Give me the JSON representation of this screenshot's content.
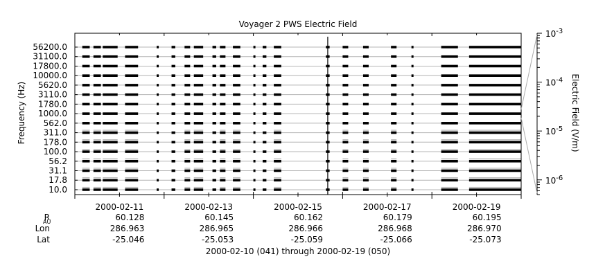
{
  "chart_data": {
    "type": "line",
    "title": "Voyager 2 PWS Electric Field",
    "ylabel": "Frequency (Hz)",
    "y2label": "Electric Field (V/m)",
    "xlabel": "2000-02-10 (041) through 2000-02-19 (050)",
    "xlim": [
      "2000-02-10",
      "2000-02-20"
    ],
    "x_ticks": [
      "2000-02-11",
      "2000-02-13",
      "2000-02-15",
      "2000-02-17",
      "2000-02-19"
    ],
    "channels": [
      "56200.0",
      "31100.0",
      "17800.0",
      "10000.0",
      "5620.0",
      "3110.0",
      "1780.0",
      "1000.0",
      "562.0",
      "311.0",
      "178.0",
      "100.0",
      "56.2",
      "31.1",
      "17.8",
      "10.0"
    ],
    "colorbar": {
      "scale": "log",
      "range": [
        5e-07,
        0.001
      ],
      "tick_labels": [
        {
          "base": "10",
          "exp": "-3"
        },
        {
          "base": "10",
          "exp": "-4"
        },
        {
          "base": "10",
          "exp": "-5"
        },
        {
          "base": "10",
          "exp": "-6"
        }
      ]
    },
    "data_segments": [
      [
        "2000-02-10T04:00",
        "2000-02-10T08:00"
      ],
      [
        "2000-02-10T10:00",
        "2000-02-10T14:00"
      ],
      [
        "2000-02-10T15:00",
        "2000-02-10T23:00"
      ],
      [
        "2000-02-11T03:00",
        "2000-02-11T10:00"
      ],
      [
        "2000-02-11T20:00",
        "2000-02-11T21:00"
      ],
      [
        "2000-02-12T04:00",
        "2000-02-12T06:00"
      ],
      [
        "2000-02-12T11:00",
        "2000-02-12T14:00"
      ],
      [
        "2000-02-12T16:00",
        "2000-02-12T21:00"
      ],
      [
        "2000-02-13T02:00",
        "2000-02-13T04:00"
      ],
      [
        "2000-02-13T06:00",
        "2000-02-13T09:00"
      ],
      [
        "2000-02-13T13:00",
        "2000-02-13T17:00"
      ],
      [
        "2000-02-14T00:00",
        "2000-02-14T01:00"
      ],
      [
        "2000-02-14T05:00",
        "2000-02-14T07:00"
      ],
      [
        "2000-02-14T11:00",
        "2000-02-14T15:00"
      ],
      [
        "2000-02-15T15:00",
        "2000-02-15T17:00"
      ],
      [
        "2000-02-16T00:00",
        "2000-02-16T03:00"
      ],
      [
        "2000-02-16T11:00",
        "2000-02-16T14:00"
      ],
      [
        "2000-02-17T02:00",
        "2000-02-17T05:00"
      ],
      [
        "2000-02-17T13:00",
        "2000-02-17T14:00"
      ],
      [
        "2000-02-18T05:00",
        "2000-02-18T14:00"
      ],
      [
        "2000-02-18T20:00",
        "2000-02-20T00:00"
      ]
    ],
    "spike": "2000-02-15T16:00",
    "ephemeris": {
      "rows": [
        {
          "label": "R",
          "sub": "AU",
          "values": [
            "60.128",
            "60.145",
            "60.162",
            "60.179",
            "60.195"
          ]
        },
        {
          "label": "Lon",
          "sub": "",
          "values": [
            "286.963",
            "286.965",
            "286.966",
            "286.968",
            "286.970"
          ]
        },
        {
          "label": "Lat",
          "sub": "",
          "values": [
            "-25.046",
            "-25.053",
            "-25.059",
            "-25.066",
            "-25.073"
          ]
        }
      ]
    }
  }
}
